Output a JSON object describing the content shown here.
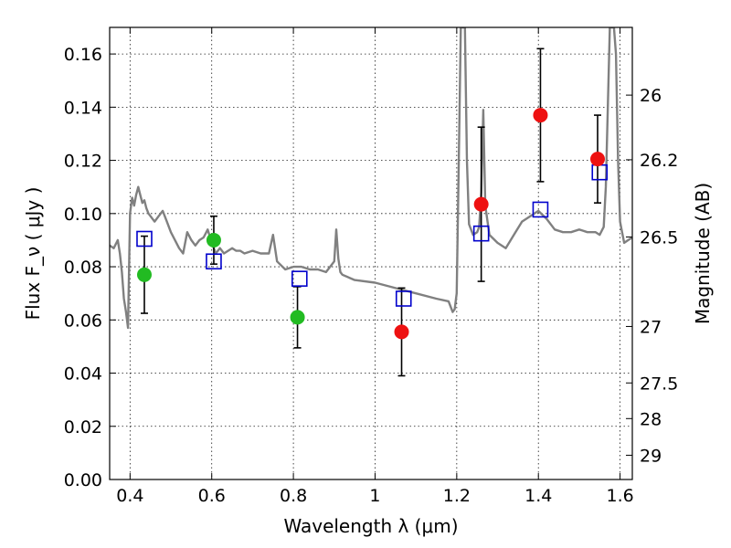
{
  "chart_data": {
    "type": "scatter",
    "title": "",
    "xlabel": "Wavelength  λ (μm)",
    "ylabel": "Flux  F_ν  ( μJy )",
    "ylabel_right": "Magnitude (AB)",
    "xlim": [
      0.35,
      1.63
    ],
    "ylim": [
      0.0,
      0.17
    ],
    "grid": true,
    "x_ticks": [
      0.4,
      0.6,
      0.8,
      1.0,
      1.2,
      1.4,
      1.6
    ],
    "x_tick_labels": [
      "0.4",
      "0.6",
      "0.8",
      "1",
      "1.2",
      "1.4",
      "1.6"
    ],
    "y_ticks": [
      0.0,
      0.02,
      0.04,
      0.06,
      0.08,
      0.1,
      0.12,
      0.14,
      0.16
    ],
    "y_tick_labels": [
      "0.00",
      "0.02",
      "0.04",
      "0.06",
      "0.08",
      "0.10",
      "0.12",
      "0.14",
      "0.16"
    ],
    "right_ticks": [
      {
        "mag": 26,
        "label": "26"
      },
      {
        "mag": 26.2,
        "label": "26.2"
      },
      {
        "mag": 26.5,
        "label": "26.5"
      },
      {
        "mag": 27,
        "label": "27"
      },
      {
        "mag": 27.5,
        "label": "27.5"
      },
      {
        "mag": 28,
        "label": "28"
      },
      {
        "mag": 29,
        "label": "29"
      }
    ],
    "series": [
      {
        "kind": "line",
        "color": "#808080",
        "x": [
          0.35,
          0.36,
          0.37,
          0.375,
          0.38,
          0.385,
          0.39,
          0.395,
          0.4,
          0.405,
          0.41,
          0.415,
          0.42,
          0.425,
          0.43,
          0.435,
          0.44,
          0.445,
          0.45,
          0.46,
          0.47,
          0.48,
          0.49,
          0.5,
          0.51,
          0.52,
          0.53,
          0.54,
          0.55,
          0.56,
          0.57,
          0.58,
          0.59,
          0.6,
          0.61,
          0.62,
          0.63,
          0.64,
          0.65,
          0.66,
          0.67,
          0.68,
          0.7,
          0.72,
          0.74,
          0.75,
          0.76,
          0.78,
          0.8,
          0.82,
          0.84,
          0.86,
          0.88,
          0.9,
          0.905,
          0.91,
          0.915,
          0.92,
          0.95,
          1.0,
          1.05,
          1.1,
          1.15,
          1.18,
          1.19,
          1.195,
          1.2,
          1.205,
          1.21,
          1.215,
          1.22,
          1.225,
          1.23,
          1.24,
          1.25,
          1.255,
          1.26,
          1.265,
          1.27,
          1.28,
          1.3,
          1.32,
          1.34,
          1.36,
          1.38,
          1.4,
          1.42,
          1.44,
          1.46,
          1.48,
          1.5,
          1.52,
          1.54,
          1.55,
          1.56,
          1.565,
          1.57,
          1.575,
          1.58,
          1.585,
          1.59,
          1.595,
          1.6,
          1.605,
          1.61,
          1.62,
          1.63
        ],
        "y": [
          0.088,
          0.087,
          0.09,
          0.085,
          0.078,
          0.068,
          0.063,
          0.057,
          0.1,
          0.106,
          0.103,
          0.107,
          0.11,
          0.107,
          0.104,
          0.105,
          0.102,
          0.1,
          0.099,
          0.097,
          0.099,
          0.101,
          0.097,
          0.093,
          0.09,
          0.087,
          0.085,
          0.093,
          0.09,
          0.088,
          0.09,
          0.091,
          0.094,
          0.089,
          0.085,
          0.087,
          0.085,
          0.086,
          0.087,
          0.086,
          0.086,
          0.085,
          0.086,
          0.085,
          0.085,
          0.092,
          0.082,
          0.079,
          0.08,
          0.08,
          0.079,
          0.079,
          0.078,
          0.082,
          0.094,
          0.083,
          0.078,
          0.077,
          0.075,
          0.074,
          0.072,
          0.07,
          0.068,
          0.067,
          0.063,
          0.064,
          0.07,
          0.12,
          0.17,
          0.17,
          0.17,
          0.12,
          0.096,
          0.092,
          0.093,
          0.095,
          0.108,
          0.139,
          0.103,
          0.092,
          0.089,
          0.087,
          0.092,
          0.097,
          0.099,
          0.101,
          0.098,
          0.094,
          0.093,
          0.093,
          0.094,
          0.093,
          0.093,
          0.092,
          0.095,
          0.11,
          0.14,
          0.17,
          0.17,
          0.17,
          0.16,
          0.12,
          0.097,
          0.093,
          0.089,
          0.09,
          0.091
        ]
      },
      {
        "kind": "open-square",
        "color": "#0000cc",
        "x": [
          0.435,
          0.605,
          0.815,
          1.07,
          1.26,
          1.405,
          1.55
        ],
        "y": [
          0.0905,
          0.082,
          0.0755,
          0.068,
          0.0925,
          0.1015,
          0.1155
        ]
      },
      {
        "kind": "filled-circle",
        "color": "#22bb22",
        "x": [
          0.435,
          0.605,
          0.81
        ],
        "y": [
          0.077,
          0.09,
          0.061
        ],
        "yerr": [
          0.0145,
          0.009,
          0.0115
        ]
      },
      {
        "kind": "filled-circle",
        "color": "#ee1111",
        "x": [
          1.065,
          1.26,
          1.405,
          1.545
        ],
        "y": [
          0.0555,
          0.1035,
          0.137,
          0.1205
        ],
        "yerr": [
          0.0165,
          0.029,
          0.025,
          0.0165
        ]
      }
    ]
  }
}
